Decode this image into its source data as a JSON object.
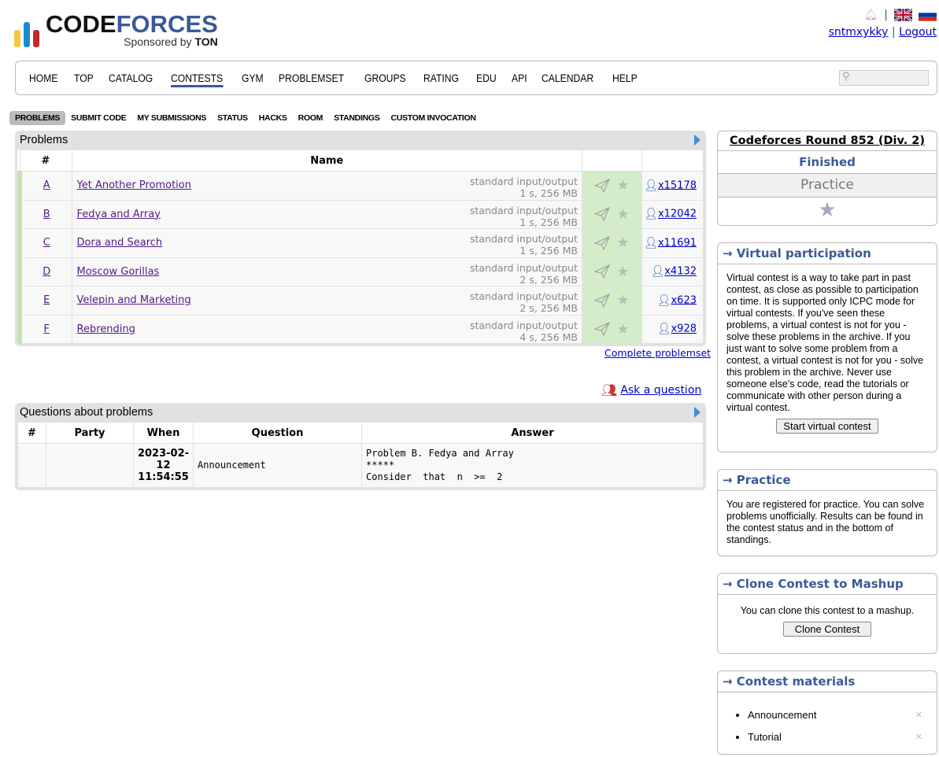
{
  "logo": {
    "word1": "CODE",
    "word2": "FORCES",
    "sponsor_prefix": "Sponsored by",
    "sponsor_name": "TON",
    "bar_colors": [
      "#f5c842",
      "#1a8ad4",
      "#c62828"
    ]
  },
  "header": {
    "username": "sntmxykky",
    "logout": "Logout",
    "separator": "|",
    "icons": [
      "bell-icon",
      "flag-uk-icon",
      "flag-ru-icon"
    ]
  },
  "menu": {
    "items": [
      "HOME",
      "TOP",
      "CATALOG",
      "CONTESTS",
      "GYM",
      "PROBLEMSET",
      "GROUPS",
      "RATING",
      "EDU",
      "API",
      "CALENDAR",
      "HELP"
    ],
    "active": "CONTESTS",
    "search_placeholder": ""
  },
  "subtabs": {
    "items": [
      "PROBLEMS",
      "SUBMIT CODE",
      "MY SUBMISSIONS",
      "STATUS",
      "HACKS",
      "ROOM",
      "STANDINGS",
      "CUSTOM INVOCATION"
    ],
    "active": "PROBLEMS"
  },
  "problems": {
    "title": "Problems",
    "headers": {
      "index": "#",
      "name": "Name"
    },
    "rows": [
      {
        "index": "A",
        "name": "Yet Another Promotion",
        "io": "standard input/output",
        "limits": "1 s, 256 MB",
        "solved": "x15178"
      },
      {
        "index": "B",
        "name": "Fedya and Array",
        "io": "standard input/output",
        "limits": "1 s, 256 MB",
        "solved": "x12042"
      },
      {
        "index": "C",
        "name": "Dora and Search",
        "io": "standard input/output",
        "limits": "1 s, 256 MB",
        "solved": "x11691"
      },
      {
        "index": "D",
        "name": "Moscow Gorillas",
        "io": "standard input/output",
        "limits": "2 s, 256 MB",
        "solved": "x4132"
      },
      {
        "index": "E",
        "name": "Velepin and Marketing",
        "io": "standard input/output",
        "limits": "2 s, 256 MB",
        "solved": "x623"
      },
      {
        "index": "F",
        "name": "Rebrending",
        "io": "standard input/output",
        "limits": "4 s, 256 MB",
        "solved": "x928"
      }
    ],
    "complete_link": "Complete problemset",
    "accepted_color": "#d4edc9"
  },
  "ask": {
    "label": "Ask a question"
  },
  "questions": {
    "title": "Questions about problems",
    "headers": [
      "#",
      "Party",
      "When",
      "Question",
      "Answer"
    ],
    "rows": [
      {
        "index": "",
        "party": "",
        "when": [
          "2023-02-",
          "12",
          "11:54:55"
        ],
        "question": "Announcement",
        "answer": [
          "Problem B. Fedya and Array",
          "*****",
          "Consider  that  n  >=  2"
        ]
      }
    ]
  },
  "sidebar": {
    "contest": {
      "name": "Codeforces Round 852 (Div. 2)",
      "phase": "Finished",
      "mode": "Practice"
    },
    "virtual": {
      "title": "→ Virtual participation",
      "text": "Virtual contest is a way to take part in past contest, as close as possible to participation on time. It is supported only ICPC mode for virtual contests. If you've seen these problems, a virtual contest is not for you - solve these problems in the archive. If you just want to solve some problem from a contest, a virtual contest is not for you - solve this problem in the archive. Never use someone else's code, read the tutorials or communicate with other person during a virtual contest.",
      "button": "Start virtual contest"
    },
    "practice": {
      "title": "→ Practice",
      "text": "You are registered for practice. You can solve problems unofficially. Results can be found in the contest status and in the bottom of standings."
    },
    "clone": {
      "title": "→ Clone Contest to Mashup",
      "text": "You can clone this contest to a mashup.",
      "button": "Clone Contest"
    },
    "materials": {
      "title": "→ Contest materials",
      "items": [
        "Announcement",
        "Tutorial"
      ]
    }
  }
}
